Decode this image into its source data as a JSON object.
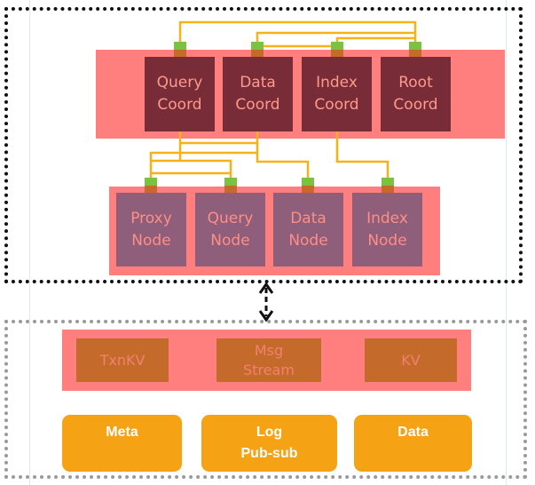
{
  "coordinators": [
    {
      "label": "Query\nCoord"
    },
    {
      "label": "Data\nCoord"
    },
    {
      "label": "Index\nCoord"
    },
    {
      "label": "Root\nCoord"
    }
  ],
  "worker_nodes": [
    {
      "label": "Proxy\nNode"
    },
    {
      "label": "Query\nNode"
    },
    {
      "label": "Data\nNode"
    },
    {
      "label": "Index\nNode"
    }
  ],
  "storage_components": [
    {
      "label": "TxnKV"
    },
    {
      "label": "Msg\nStream"
    },
    {
      "label": "KV"
    }
  ],
  "storage_backends": [
    {
      "label": "Meta"
    },
    {
      "label": "Log\nPub-sub"
    },
    {
      "label": "Data"
    }
  ],
  "colors": {
    "band": "#ff7f7f",
    "coord": "#772c38",
    "node": "#8e5e7a",
    "store": "#c46a2a",
    "backend": "#f6a215",
    "wire": "#f7b21a",
    "port": "#7cc242"
  }
}
